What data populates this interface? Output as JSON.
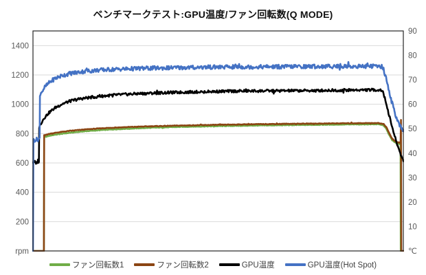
{
  "title": "ベンチマークテスト:GPU温度/ファン回転数(Q MODE)",
  "colors": {
    "fan1_green": "#70AD47",
    "fan2_brown": "#8B4513",
    "gpu_black": "#000000",
    "hotspot_blue": "#4472C4",
    "gridline": "#D9D9D9",
    "plot_border": "#262626",
    "tick_text": "#595959",
    "legend_text": "#404040"
  },
  "chart_data": {
    "type": "line",
    "title": "ベンチマークテスト:GPU温度/ファン回転数(Q MODE)",
    "xlabel": "",
    "grid": true,
    "legend_position": "bottom",
    "left_axis": {
      "unit": "rpm",
      "zero_label": "rpm",
      "min": 0,
      "max": 1500,
      "ticks": [
        200,
        400,
        600,
        800,
        1000,
        1200,
        1400
      ]
    },
    "right_axis": {
      "unit": "℃",
      "zero_label": "℃",
      "min": 0,
      "max": 90,
      "ticks": [
        10,
        20,
        30,
        40,
        50,
        60,
        70,
        80,
        90
      ]
    },
    "series": [
      {
        "name": "ファン回転数1",
        "color_key": "fan1_green",
        "axis": "left",
        "noise": 2.0,
        "points": [
          [
            0,
            0
          ],
          [
            0.0295,
            0
          ],
          [
            0.0302,
            775
          ],
          [
            0.045,
            786
          ],
          [
            0.07,
            796
          ],
          [
            0.1,
            806
          ],
          [
            0.14,
            816
          ],
          [
            0.19,
            825
          ],
          [
            0.25,
            833
          ],
          [
            0.32,
            840
          ],
          [
            0.4,
            846
          ],
          [
            0.5,
            851
          ],
          [
            0.6,
            855
          ],
          [
            0.7,
            858
          ],
          [
            0.8,
            861
          ],
          [
            0.88,
            863
          ],
          [
            0.93,
            864
          ],
          [
            0.946,
            858
          ],
          [
            0.954,
            832
          ],
          [
            0.962,
            790
          ],
          [
            0.97,
            755
          ],
          [
            0.978,
            738
          ],
          [
            0.986,
            730
          ],
          [
            0.9925,
            727
          ],
          [
            0.993,
            0
          ]
        ]
      },
      {
        "name": "ファン回転数2",
        "color_key": "fan2_brown",
        "axis": "left",
        "noise": 2.0,
        "points": [
          [
            0,
            0
          ],
          [
            0.0295,
            0
          ],
          [
            0.0302,
            788
          ],
          [
            0.045,
            799
          ],
          [
            0.07,
            809
          ],
          [
            0.1,
            819
          ],
          [
            0.14,
            828
          ],
          [
            0.19,
            837
          ],
          [
            0.25,
            844
          ],
          [
            0.32,
            850
          ],
          [
            0.4,
            855
          ],
          [
            0.5,
            860
          ],
          [
            0.6,
            864
          ],
          [
            0.7,
            867
          ],
          [
            0.8,
            869
          ],
          [
            0.88,
            871
          ],
          [
            0.93,
            872
          ],
          [
            0.947,
            866
          ],
          [
            0.955,
            840
          ],
          [
            0.963,
            797
          ],
          [
            0.971,
            762
          ],
          [
            0.979,
            746
          ],
          [
            0.987,
            739
          ],
          [
            0.9925,
            735
          ],
          [
            0.9937,
            893
          ],
          [
            0.9945,
            0
          ]
        ]
      },
      {
        "name": "GPU温度",
        "color_key": "gpu_black",
        "axis": "right",
        "noise": 0.55,
        "points": [
          [
            0,
            36.3
          ],
          [
            0.004,
            36.6
          ],
          [
            0.008,
            35.9
          ],
          [
            0.012,
            36.4
          ],
          [
            0.016,
            36.6
          ],
          [
            0.0168,
            50.5
          ],
          [
            0.022,
            52.3
          ],
          [
            0.03,
            54.4
          ],
          [
            0.045,
            56.8
          ],
          [
            0.06,
            58.6
          ],
          [
            0.08,
            60.2
          ],
          [
            0.1,
            61.3
          ],
          [
            0.13,
            62.3
          ],
          [
            0.17,
            63.1
          ],
          [
            0.22,
            63.8
          ],
          [
            0.28,
            64.3
          ],
          [
            0.35,
            64.7
          ],
          [
            0.45,
            65.1
          ],
          [
            0.55,
            65.4
          ],
          [
            0.65,
            65.5
          ],
          [
            0.75,
            65.6
          ],
          [
            0.85,
            65.8
          ],
          [
            0.92,
            65.9
          ],
          [
            0.943,
            65.8
          ],
          [
            0.952,
            61.5
          ],
          [
            0.96,
            56.5
          ],
          [
            0.968,
            51.8
          ],
          [
            0.976,
            47.2
          ],
          [
            0.984,
            43.4
          ],
          [
            0.991,
            40.3
          ],
          [
            0.996,
            38.3
          ],
          [
            1,
            37.2
          ]
        ]
      },
      {
        "name": "GPU温度(Hot Spot)",
        "color_key": "hotspot_blue",
        "axis": "right",
        "noise": 0.85,
        "points": [
          [
            0,
            0
          ],
          [
            0.0012,
            45.2
          ],
          [
            0.006,
            45.5
          ],
          [
            0.012,
            45.6
          ],
          [
            0.018,
            45.9
          ],
          [
            0.0188,
            63
          ],
          [
            0.024,
            65.2
          ],
          [
            0.032,
            67
          ],
          [
            0.045,
            69
          ],
          [
            0.06,
            70.6
          ],
          [
            0.08,
            71.8
          ],
          [
            0.1,
            72.6
          ],
          [
            0.13,
            73.3
          ],
          [
            0.17,
            73.9
          ],
          [
            0.22,
            74.3
          ],
          [
            0.3,
            74.7
          ],
          [
            0.4,
            75.0
          ],
          [
            0.5,
            75.2
          ],
          [
            0.6,
            75.3
          ],
          [
            0.7,
            75.4
          ],
          [
            0.8,
            75.5
          ],
          [
            0.88,
            75.5
          ],
          [
            0.92,
            75.6
          ],
          [
            0.944,
            75.4
          ],
          [
            0.952,
            71.5
          ],
          [
            0.96,
            66.5
          ],
          [
            0.968,
            61.5
          ],
          [
            0.976,
            57
          ],
          [
            0.984,
            53.5
          ],
          [
            0.991,
            51
          ],
          [
            0.996,
            49.6
          ],
          [
            1,
            48.9
          ]
        ]
      }
    ]
  }
}
